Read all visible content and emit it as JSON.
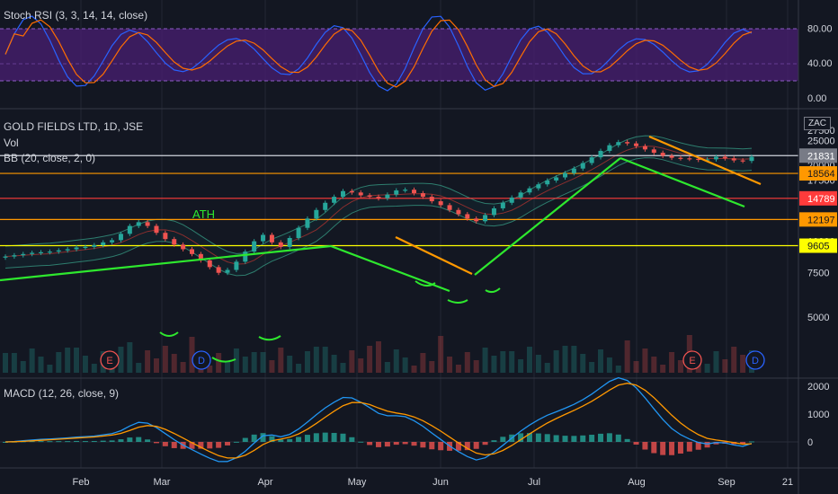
{
  "indicators": {
    "stoch_label": "Stoch RSI (3, 3, 14, 14, close)",
    "symbol_label": "GOLD FIELDS LTD, 1D, JSE",
    "vol_label": "Vol",
    "bb_label": "BB (20, close, 2, 0)",
    "macd_label": "MACD (12, 26, close, 9)",
    "ath_label": "ATH",
    "currency_badge": "ZAC"
  },
  "colors": {
    "background": "#131722",
    "grid": "#2a2e39",
    "up": "#26a69a",
    "down": "#ef5350",
    "trend_green": "#2ee82e",
    "trend_orange": "#ff9800",
    "band_purple": "#4a1f73",
    "yellow": "#ffff00",
    "red_level": "#ff3b3b",
    "stoch_k": "#2962ff",
    "stoch_d": "#ff6d00",
    "macd_line": "#2196f3",
    "signal_line": "#ff9800"
  },
  "chart_data": {
    "type": "candlestick",
    "x_axis_labels": [
      "Feb",
      "Mar",
      "Apr",
      "May",
      "Jun",
      "Jul",
      "Aug",
      "Sep",
      "21"
    ],
    "price_axis": {
      "ticks": [
        "27500",
        "25000",
        "22500",
        "20000",
        "17500",
        "12500",
        "10000",
        "7500",
        "5000"
      ],
      "level_tags": [
        {
          "value": "21831",
          "bg": "#787b86",
          "fg": "#ffffff"
        },
        {
          "value": "18564",
          "bg": "#ff9800",
          "fg": "#131722"
        },
        {
          "value": "14789",
          "bg": "#ff3b3b",
          "fg": "#ffffff"
        },
        {
          "value": "12197",
          "bg": "#ff9800",
          "fg": "#131722"
        },
        {
          "value": "9605",
          "bg": "#ffff00",
          "fg": "#131722"
        }
      ]
    },
    "horizontal_levels": [
      {
        "value": 21831,
        "color": "#d1d4dc"
      },
      {
        "value": 18564,
        "color": "#ff9800"
      },
      {
        "value": 14789,
        "color": "#ff3b3b"
      },
      {
        "value": 12197,
        "color": "#ff9800"
      },
      {
        "value": 9605,
        "color": "#ffff00"
      }
    ],
    "stoch_rsi": {
      "ticks": [
        "80.00",
        "40.00",
        "0.00"
      ],
      "band": [
        20,
        80
      ]
    },
    "macd": {
      "ticks": [
        "2000",
        "1000",
        "0"
      ]
    },
    "event_markers": [
      "E",
      "D",
      "E",
      "D"
    ],
    "close_series": [
      8700,
      8800,
      8900,
      9000,
      9050,
      9100,
      9200,
      9300,
      9450,
      9500,
      9650,
      9900,
      10100,
      10700,
      11500,
      11900,
      11500,
      10800,
      10200,
      9700,
      9300,
      8900,
      8400,
      7900,
      7500,
      7700,
      8300,
      9100,
      10000,
      10600,
      9900,
      9500,
      10300,
      11300,
      12300,
      13300,
      14200,
      15000,
      15800,
      15600,
      15200,
      15000,
      14800,
      15300,
      15900,
      16000,
      15500,
      15000,
      14400,
      13900,
      13300,
      12800,
      12300,
      12000,
      12700,
      13500,
      14200,
      14900,
      15600,
      16200,
      16800,
      17400,
      17900,
      18600,
      19400,
      20400,
      21500,
      22800,
      24000,
      24700,
      24400,
      23800,
      23100,
      22400,
      21800,
      21400,
      21300,
      21200,
      21000,
      21100,
      21600,
      21300,
      20900,
      20800,
      21600
    ]
  }
}
